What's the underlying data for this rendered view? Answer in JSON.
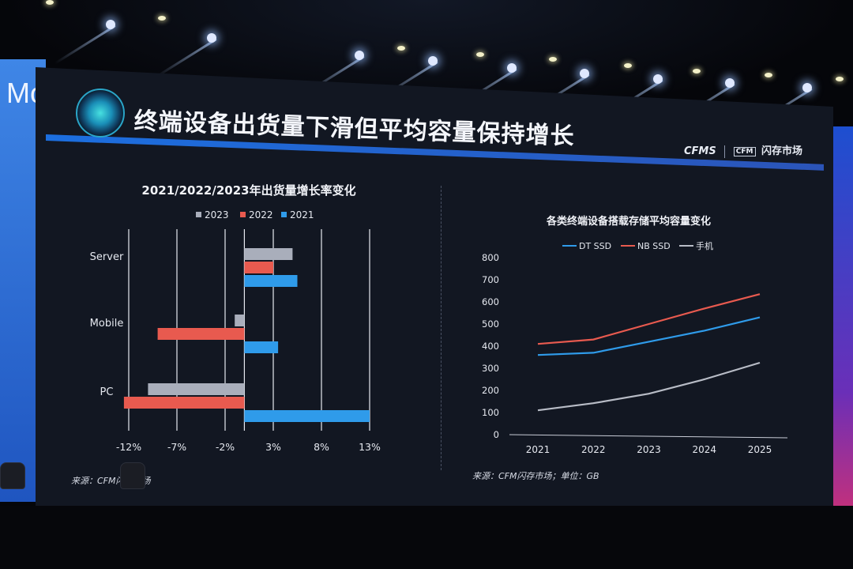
{
  "slide": {
    "title": "终端设备出货量下滑但平均容量保持增长",
    "brand_left": "CFMS",
    "brand_right": "闪存市场",
    "brand_box": "CFM",
    "wall_text": "Mo"
  },
  "chart_data": [
    {
      "type": "bar",
      "orientation": "horizontal",
      "title": "2021/2022/2023年出货量增长率变化",
      "categories": [
        "Server",
        "Mobile",
        "PC"
      ],
      "series": [
        {
          "name": "2023",
          "color": "#a9aebb",
          "values": [
            5.0,
            -1.0,
            -10.0
          ]
        },
        {
          "name": "2022",
          "color": "#e85a4f",
          "values": [
            3.0,
            -9.0,
            -12.5
          ]
        },
        {
          "name": "2021",
          "color": "#2f9bea",
          "values": [
            5.5,
            3.5,
            13.0
          ]
        }
      ],
      "x_ticks": [
        "-12%",
        "-7%",
        "-2%",
        "3%",
        "8%",
        "13%"
      ],
      "xlim": [
        -12,
        13
      ],
      "legend_position": "top",
      "source": "来源：CFM闪存市场"
    },
    {
      "type": "line",
      "title": "各类终端设备搭载存储平均容量变化",
      "x": [
        "2021",
        "2022",
        "2023",
        "2024",
        "2025"
      ],
      "series": [
        {
          "name": "DT SSD",
          "color": "#2f9bea",
          "values": [
            360,
            370,
            420,
            470,
            530
          ]
        },
        {
          "name": "NB SSD",
          "color": "#e85a4f",
          "values": [
            410,
            430,
            500,
            570,
            635
          ]
        },
        {
          "name": "手机",
          "color": "#b8bcc6",
          "values": [
            110,
            142,
            185,
            250,
            325
          ]
        }
      ],
      "ylim": [
        0,
        800
      ],
      "y_ticks": [
        "0",
        "100",
        "200",
        "300",
        "400",
        "500",
        "600",
        "700",
        "800"
      ],
      "legend_position": "top",
      "grid": false,
      "source": "来源：CFM闪存市场；单位：GB"
    }
  ]
}
